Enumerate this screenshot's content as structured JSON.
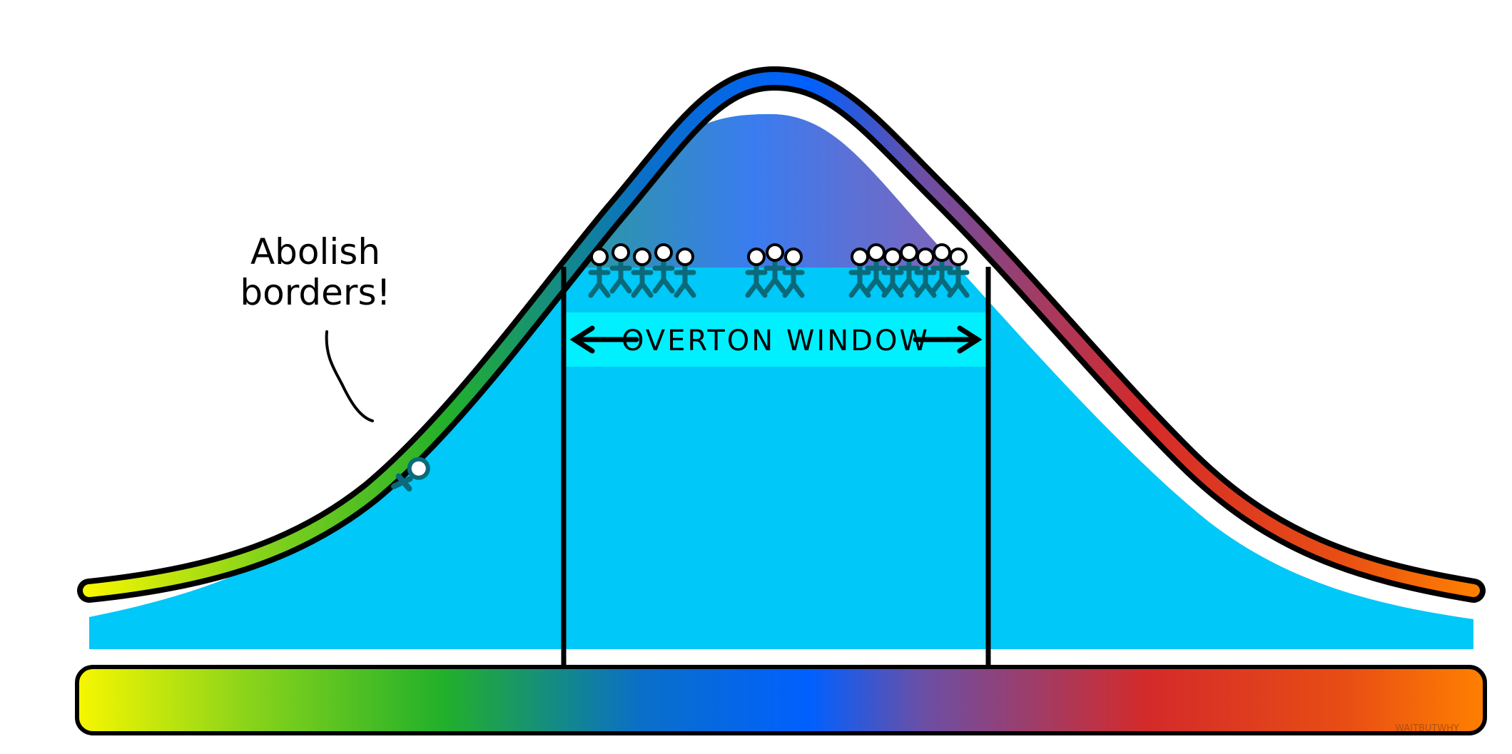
{
  "diagram": {
    "speech_bubble": {
      "line1": "Abolish",
      "line2": "borders!"
    },
    "overton_window": {
      "label": "OVERTON WINDOW"
    },
    "watermark": "WAITBUTWHY",
    "people": {
      "crowd_count": 15,
      "fallen_count": 1
    },
    "colors": {
      "spectrum": [
        "#f7f700",
        "#8bd41a",
        "#22b02a",
        "#0a6fc8",
        "#0060ff",
        "#6a4fa6",
        "#d42a2a",
        "#e84d14",
        "#ff8000"
      ],
      "fill": "#00c8f8",
      "window_band": "#00f0ff",
      "person": "#0a6a7a",
      "outline": "#000000"
    }
  }
}
